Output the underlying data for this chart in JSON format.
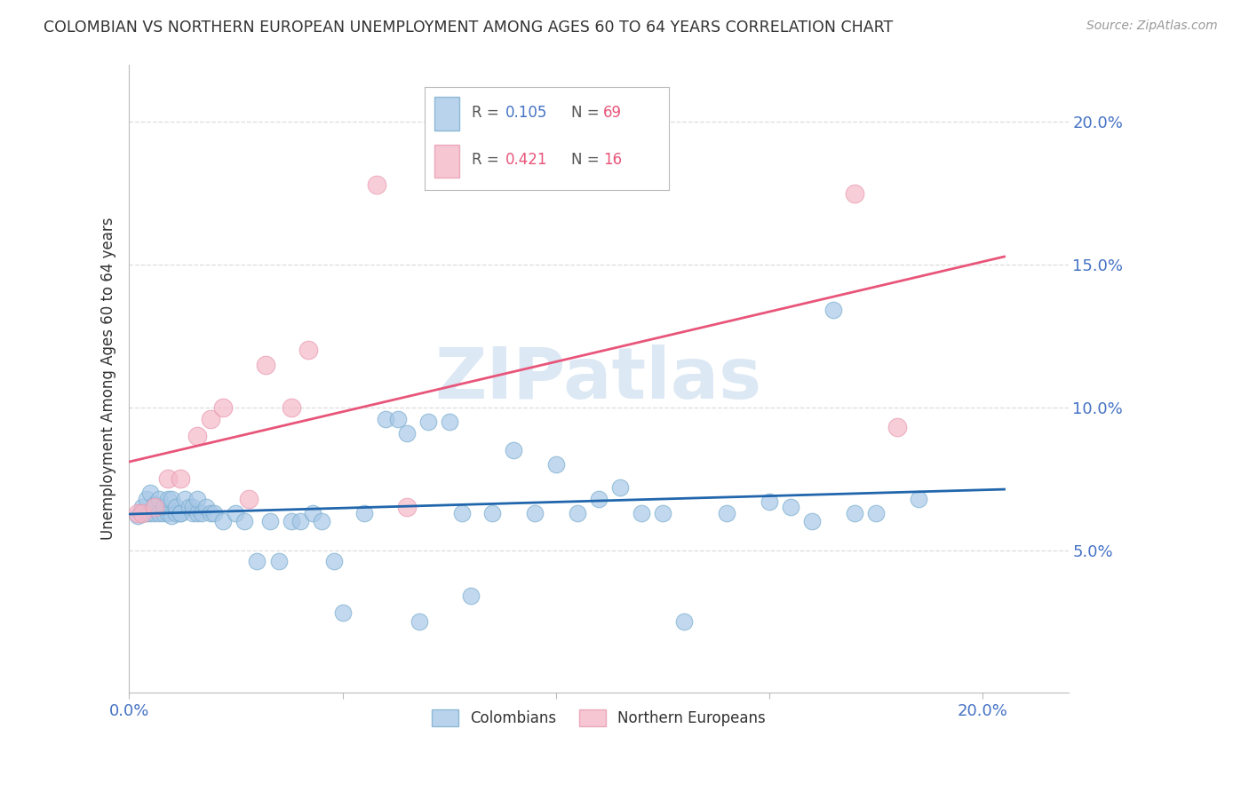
{
  "title": "COLOMBIAN VS NORTHERN EUROPEAN UNEMPLOYMENT AMONG AGES 60 TO 64 YEARS CORRELATION CHART",
  "source": "Source: ZipAtlas.com",
  "ylabel": "Unemployment Among Ages 60 to 64 years",
  "xlim": [
    0.0,
    0.22
  ],
  "ylim": [
    0.0,
    0.22
  ],
  "yticks": [
    0.05,
    0.1,
    0.15,
    0.2
  ],
  "ytick_labels": [
    "5.0%",
    "10.0%",
    "15.0%",
    "20.0%"
  ],
  "xticks": [
    0.0,
    0.05,
    0.1,
    0.15,
    0.2
  ],
  "xtick_labels": [
    "0.0%",
    "",
    "",
    "",
    "20.0%"
  ],
  "blue_color": "#a8c8e8",
  "pink_color": "#f4b8c8",
  "blue_line_color": "#2166ac",
  "pink_line_color": "#e8557a",
  "title_color": "#333333",
  "tick_label_color": "#4472c4",
  "watermark": "ZIPatlas",
  "watermark_color": "#dce8f4",
  "background_color": "#ffffff",
  "grid_color": "#dddddd",
  "colombians_x": [
    0.002,
    0.003,
    0.004,
    0.004,
    0.005,
    0.005,
    0.006,
    0.006,
    0.007,
    0.007,
    0.008,
    0.008,
    0.009,
    0.009,
    0.01,
    0.01,
    0.011,
    0.011,
    0.012,
    0.012,
    0.013,
    0.014,
    0.015,
    0.015,
    0.016,
    0.016,
    0.017,
    0.018,
    0.019,
    0.02,
    0.022,
    0.025,
    0.027,
    0.03,
    0.033,
    0.035,
    0.038,
    0.04,
    0.043,
    0.045,
    0.048,
    0.05,
    0.055,
    0.06,
    0.063,
    0.065,
    0.068,
    0.07,
    0.075,
    0.078,
    0.08,
    0.085,
    0.09,
    0.095,
    0.1,
    0.105,
    0.11,
    0.115,
    0.12,
    0.125,
    0.13,
    0.14,
    0.15,
    0.155,
    0.16,
    0.165,
    0.17,
    0.175,
    0.185
  ],
  "colombians_y": [
    0.062,
    0.065,
    0.063,
    0.068,
    0.063,
    0.07,
    0.063,
    0.066,
    0.063,
    0.068,
    0.063,
    0.065,
    0.063,
    0.068,
    0.062,
    0.068,
    0.063,
    0.065,
    0.063,
    0.063,
    0.068,
    0.065,
    0.063,
    0.065,
    0.063,
    0.068,
    0.063,
    0.065,
    0.063,
    0.063,
    0.06,
    0.063,
    0.06,
    0.046,
    0.06,
    0.046,
    0.06,
    0.06,
    0.063,
    0.06,
    0.046,
    0.028,
    0.063,
    0.096,
    0.096,
    0.091,
    0.025,
    0.095,
    0.095,
    0.063,
    0.034,
    0.063,
    0.085,
    0.063,
    0.08,
    0.063,
    0.068,
    0.072,
    0.063,
    0.063,
    0.025,
    0.063,
    0.067,
    0.065,
    0.06,
    0.134,
    0.063,
    0.063,
    0.068
  ],
  "northern_x": [
    0.002,
    0.003,
    0.006,
    0.009,
    0.012,
    0.016,
    0.019,
    0.022,
    0.028,
    0.032,
    0.038,
    0.042,
    0.058,
    0.065,
    0.17,
    0.18
  ],
  "northern_y": [
    0.063,
    0.063,
    0.065,
    0.075,
    0.075,
    0.09,
    0.096,
    0.1,
    0.068,
    0.115,
    0.1,
    0.12,
    0.178,
    0.065,
    0.175,
    0.093
  ],
  "col_regression": [
    0.0629,
    0.0702
  ],
  "nor_regression": [
    0.065,
    0.15
  ]
}
